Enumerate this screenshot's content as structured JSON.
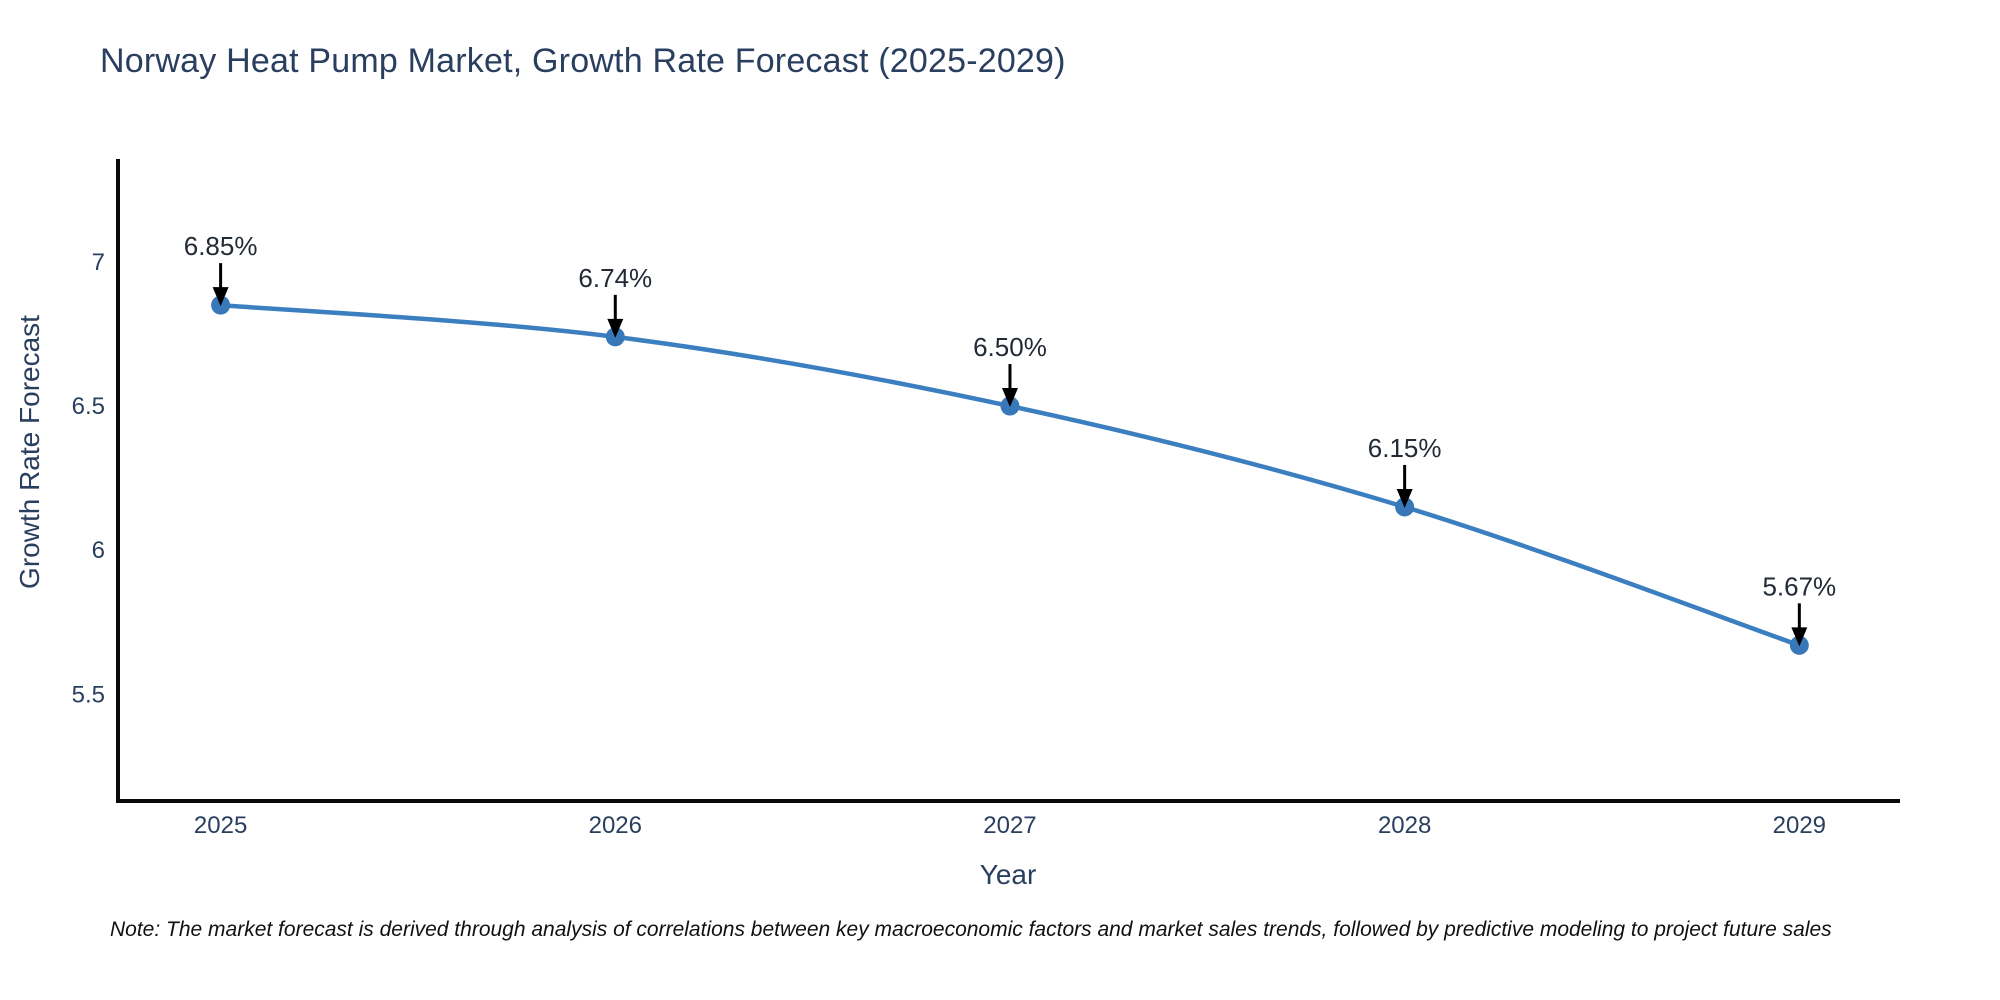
{
  "chart_data": {
    "type": "line",
    "curve": "spline",
    "title": "Norway Heat Pump Market, Growth Rate Forecast (2025-2029)",
    "xlabel": "Year",
    "ylabel": "Growth Rate Forecast",
    "x": [
      2025,
      2026,
      2027,
      2028,
      2029
    ],
    "y": [
      6.85,
      6.74,
      6.5,
      6.15,
      5.67
    ],
    "point_labels": [
      "6.85%",
      "6.74%",
      "6.50%",
      "6.15%",
      "5.67%"
    ],
    "xtick_values": [
      2025,
      2026,
      2027,
      2028,
      2029
    ],
    "xtick_labels": [
      "2025",
      "2026",
      "2027",
      "2028",
      "2029"
    ],
    "ytick_values": [
      7,
      6.5,
      6,
      5.5
    ],
    "ytick_labels": [
      "7",
      "6.5",
      "6",
      "5.5"
    ],
    "xlim": [
      2024.74,
      2029.25
    ],
    "ylim": [
      5.13,
      7.35
    ],
    "grid": false,
    "legend": "none",
    "line_color": "#3c7fc0",
    "marker_color": "#3878b8"
  },
  "note": {
    "text": "Note: The market forecast is derived through analysis of correlations between key macroeconomic factors and market sales trends, followed by predictive modeling to project future sales"
  },
  "colors": {
    "background": "#ffffff",
    "title": "#2a3f5f",
    "axis_title": "#2a3f5f",
    "tick_label": "#2a3f5f",
    "axis_line": "#0a0a0a",
    "annotation_text": "#222a35",
    "arrow": "#000000",
    "note_text": "#111111"
  }
}
